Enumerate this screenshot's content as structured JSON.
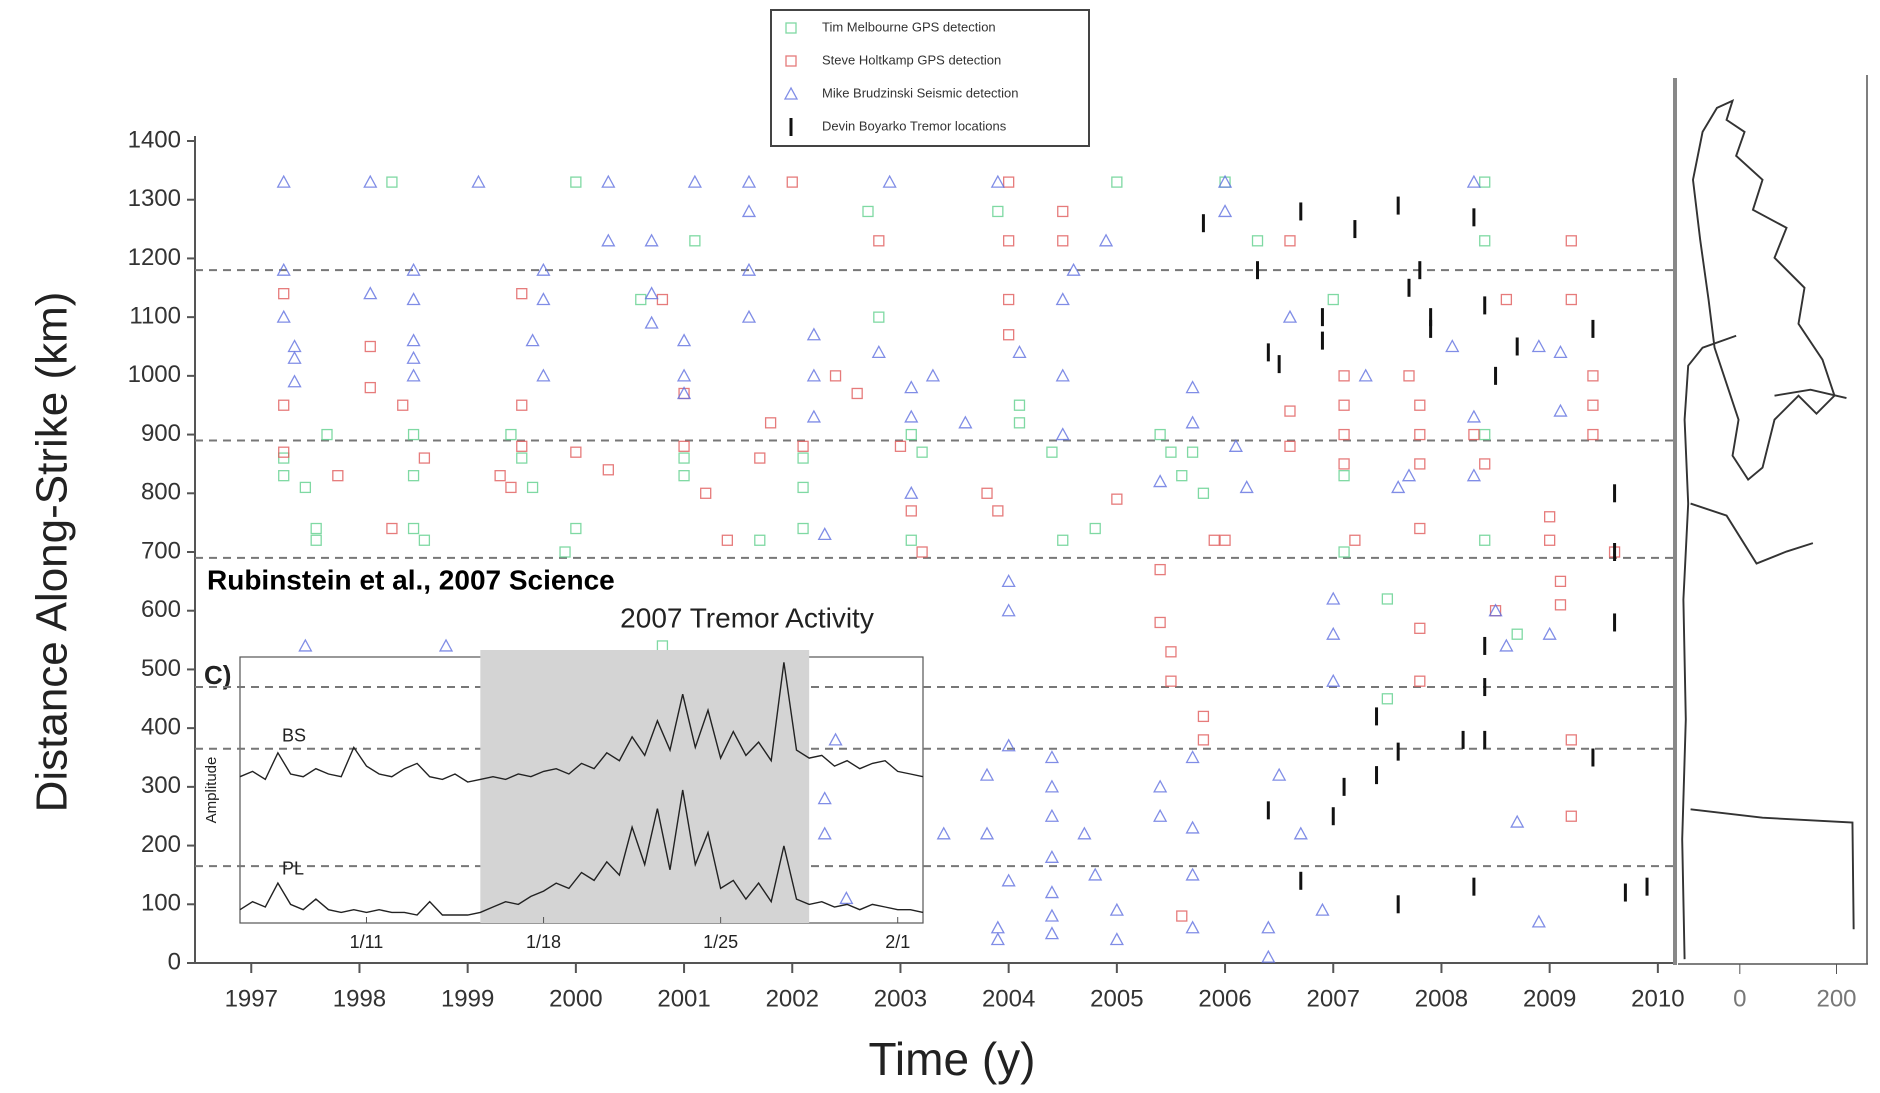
{
  "chart_data": [
    {
      "type": "scatter",
      "x_label": "Time (y)",
      "y_label": "Distance Along-Strike (km)",
      "annotation": "Rubinstein et al., 2007 Science",
      "xlim": [
        1996.48,
        2010.14
      ],
      "xticks": [
        1997,
        1998,
        1999,
        2000,
        2001,
        2002,
        2003,
        2004,
        2005,
        2006,
        2007,
        2008,
        2009,
        2010
      ],
      "ylim": [
        0,
        1400
      ],
      "yticks": [
        0,
        100,
        200,
        300,
        400,
        500,
        600,
        700,
        800,
        900,
        1000,
        1100,
        1200,
        1300,
        1400
      ],
      "hlines": [
        1180,
        890,
        690,
        470,
        365,
        165
      ],
      "legend": "top-center",
      "series": [
        {
          "name": "Tim Melbourne GPS detection",
          "color": "#5fcf8c",
          "marker": "square",
          "x": [
            1997.3,
            1997.3,
            1997.5,
            1997.6,
            1997.6,
            1997.7,
            1998.3,
            1998.5,
            1998.5,
            1998.5,
            1998.6,
            1999.4,
            1999.5,
            1999.6,
            2000.0,
            2000.0,
            1999.9,
            2000.6,
            2000.8,
            2001.0,
            2001.0,
            2001.1,
            2001.7,
            2002.1,
            2002.1,
            2002.1,
            2002.7,
            2002.8,
            2003.1,
            2003.2,
            2003.1,
            2003.9,
            2004.1,
            2004.1,
            2004.4,
            2004.5,
            2004.8,
            2005.0,
            2005.4,
            2005.5,
            2005.6,
            2005.7,
            2006.0,
            2006.3,
            2007.0,
            2007.1,
            2007.1,
            2007.5,
            2007.5,
            2008.4,
            2008.4,
            2008.4,
            2008.4,
            2008.7,
            2005.8
          ],
          "values": [
            860,
            830,
            810,
            740,
            720,
            900,
            1330,
            900,
            830,
            740,
            720,
            900,
            860,
            810,
            1330,
            740,
            700,
            1130,
            540,
            860,
            830,
            1230,
            720,
            860,
            810,
            740,
            1280,
            1100,
            900,
            870,
            720,
            1280,
            950,
            920,
            870,
            720,
            740,
            1330,
            900,
            870,
            830,
            870,
            1330,
            1230,
            1130,
            830,
            700,
            620,
            450,
            1330,
            1230,
            900,
            720,
            560,
            800
          ]
        },
        {
          "name": "Steve Holtkamp GPS detection",
          "color": "#e05a5a",
          "marker": "square",
          "x": [
            1997.3,
            1997.3,
            1997.3,
            1997.8,
            1998.1,
            1998.1,
            1998.3,
            1998.4,
            1998.6,
            1999.3,
            1999.4,
            1999.5,
            1999.5,
            1999.5,
            2000.0,
            2000.3,
            2000.8,
            2001.0,
            2001.0,
            2001.2,
            2001.4,
            2001.7,
            2001.8,
            2002.0,
            2002.1,
            2002.4,
            2002.6,
            2002.8,
            2003.0,
            2003.1,
            2003.2,
            2003.8,
            2003.9,
            2004.0,
            2004.0,
            2004.0,
            2004.0,
            2004.5,
            2004.5,
            2005.0,
            2005.4,
            2005.4,
            2005.5,
            2005.5,
            2005.6,
            2005.8,
            2005.8,
            2005.9,
            2006.0,
            2006.6,
            2006.6,
            2006.6,
            2007.1,
            2007.1,
            2007.1,
            2007.1,
            2007.2,
            2007.7,
            2007.8,
            2007.8,
            2007.8,
            2007.8,
            2007.8,
            2007.8,
            2008.3,
            2008.4,
            2008.5,
            2008.6,
            2009.0,
            2009.0,
            2009.1,
            2009.1,
            2009.2,
            2009.2,
            2009.2,
            2009.2,
            2009.4,
            2009.4,
            2009.4,
            2009.6
          ],
          "values": [
            1140,
            870,
            950,
            830,
            1050,
            980,
            740,
            950,
            860,
            830,
            810,
            1140,
            950,
            880,
            870,
            840,
            1130,
            970,
            880,
            800,
            720,
            860,
            920,
            1330,
            880,
            1000,
            970,
            1230,
            880,
            770,
            700,
            800,
            770,
            1330,
            1230,
            1130,
            1070,
            1280,
            1230,
            790,
            670,
            580,
            530,
            480,
            80,
            420,
            380,
            720,
            720,
            1230,
            940,
            880,
            1000,
            950,
            900,
            850,
            720,
            1000,
            950,
            900,
            850,
            740,
            570,
            480,
            900,
            850,
            600,
            1130,
            760,
            720,
            650,
            610,
            1230,
            1130,
            380,
            250,
            1000,
            950,
            900,
            700
          ]
        },
        {
          "name": "Mike Brudzinski Seismic detection",
          "color": "#6070e0",
          "marker": "triangle",
          "x": [
            1997.3,
            1997.3,
            1997.3,
            1997.4,
            1997.4,
            1997.4,
            1997.5,
            1998.1,
            1998.1,
            1998.5,
            1998.5,
            1998.5,
            1998.5,
            1998.5,
            1998.8,
            1999.1,
            1999.6,
            1999.7,
            1999.7,
            1999.7,
            2000.3,
            2000.3,
            2000.7,
            2000.7,
            2000.7,
            2001.0,
            2001.0,
            2001.0,
            2001.1,
            2001.6,
            2001.6,
            2001.6,
            2001.6,
            2002.2,
            2002.2,
            2002.2,
            2002.3,
            2002.4,
            2002.3,
            2002.3,
            2002.5,
            2002.9,
            2002.8,
            2003.1,
            2003.1,
            2003.1,
            2003.3,
            2003.4,
            2003.6,
            2003.8,
            2003.8,
            2003.9,
            2003.9,
            2003.9,
            2004.0,
            2004.0,
            2004.0,
            2004.0,
            2004.1,
            2004.5,
            2004.5,
            2004.5,
            2004.4,
            2004.4,
            2004.4,
            2004.4,
            2004.4,
            2004.4,
            2004.4,
            2004.6,
            2004.7,
            2004.8,
            2004.9,
            2005.0,
            2005.0,
            2005.4,
            2005.4,
            2005.4,
            2005.7,
            2005.7,
            2005.7,
            2005.7,
            2005.7,
            2005.7,
            2006.0,
            2006.0,
            2006.1,
            2006.2,
            2006.5,
            2006.6,
            2006.4,
            2006.4,
            2006.7,
            2006.9,
            2007.0,
            2007.0,
            2007.0,
            2007.3,
            2007.6,
            2007.7,
            2008.1,
            2008.3,
            2008.3,
            2008.3,
            2008.5,
            2008.6,
            2008.7,
            2008.9,
            2008.9,
            2009.0,
            2009.1,
            2009.1
          ],
          "values": [
            1330,
            1180,
            1100,
            1050,
            990,
            1030,
            540,
            1330,
            1140,
            1180,
            1130,
            1060,
            1000,
            1030,
            540,
            1330,
            1060,
            1180,
            1130,
            1000,
            1330,
            1230,
            1230,
            1140,
            1090,
            1060,
            1000,
            970,
            1330,
            1330,
            1280,
            1180,
            1100,
            1070,
            1000,
            930,
            730,
            380,
            280,
            220,
            110,
            1330,
            1040,
            980,
            930,
            800,
            1000,
            220,
            920,
            320,
            220,
            60,
            40,
            1330,
            650,
            600,
            370,
            140,
            1040,
            1130,
            1000,
            900,
            350,
            300,
            250,
            180,
            120,
            80,
            50,
            1180,
            220,
            150,
            1230,
            90,
            40,
            820,
            300,
            250,
            350,
            230,
            150,
            60,
            920,
            980,
            1280,
            1330,
            880,
            810,
            320,
            1100,
            60,
            10,
            220,
            90,
            620,
            560,
            480,
            1000,
            810,
            830,
            1050,
            930,
            830,
            1330,
            600,
            540,
            240,
            1050,
            70,
            560,
            1040,
            940
          ]
        },
        {
          "name": "Devin Boyarko Tremor locations",
          "color": "#111111",
          "marker": "tick",
          "x": [
            2005.8,
            2006.3,
            2006.4,
            2006.5,
            2006.7,
            2006.9,
            2007.0,
            2007.1,
            2007.2,
            2007.4,
            2007.6,
            2007.6,
            2007.6,
            2007.7,
            2007.8,
            2007.9,
            2007.9,
            2008.3,
            2008.2,
            2008.3,
            2008.4,
            2008.4,
            2008.4,
            2008.4,
            2008.5,
            2008.7,
            2009.4,
            2009.4,
            2009.6,
            2009.6,
            2009.6,
            2009.7,
            2009.9,
            2006.7,
            2006.4,
            2006.9,
            2007.4
          ],
          "values": [
            1260,
            1180,
            1040,
            1020,
            1280,
            1100,
            250,
            300,
            1250,
            320,
            1290,
            360,
            100,
            1150,
            1180,
            1100,
            1080,
            1270,
            380,
            130,
            1120,
            540,
            470,
            380,
            1000,
            1050,
            1080,
            350,
            800,
            700,
            580,
            120,
            130,
            140,
            260,
            1060,
            420
          ]
        }
      ]
    },
    {
      "type": "line",
      "title": "2007 Tremor Activity",
      "panel_label": "C)",
      "y_label": "Amplitude",
      "xlim": [
        6,
        33
      ],
      "xticks": [
        {
          "value": 11,
          "label": "1/11"
        },
        {
          "value": 18,
          "label": "1/18"
        },
        {
          "value": 25,
          "label": "1/25"
        },
        {
          "value": 32,
          "label": "2/1"
        }
      ],
      "ylim": [
        0,
        10
      ],
      "shade": [
        15.5,
        28.5
      ],
      "x": [
        6,
        6.5,
        7,
        7.5,
        8,
        8.5,
        9,
        9.5,
        10,
        10.5,
        11,
        11.5,
        12,
        12.5,
        13,
        13.5,
        14,
        14.5,
        15,
        15.5,
        16,
        16.5,
        17,
        17.5,
        18,
        18.5,
        19,
        19.5,
        20,
        20.5,
        21,
        21.5,
        22,
        22.5,
        23,
        23.5,
        24,
        24.5,
        25,
        25.5,
        26,
        26.5,
        27,
        27.5,
        28,
        28.5,
        29,
        29.5,
        30,
        30.5,
        31,
        31.5,
        32,
        32.5,
        33
      ],
      "series": [
        {
          "name": "BS",
          "color": "#222222",
          "values": [
            5.5,
            5.7,
            5.4,
            6.4,
            5.6,
            5.5,
            5.8,
            5.6,
            5.5,
            6.6,
            5.9,
            5.6,
            5.5,
            5.8,
            6.0,
            5.5,
            5.4,
            5.6,
            5.3,
            5.4,
            5.5,
            5.4,
            5.6,
            5.5,
            5.7,
            5.8,
            5.6,
            6.0,
            5.8,
            6.4,
            6.1,
            7.0,
            6.3,
            7.6,
            6.5,
            8.6,
            6.6,
            8.0,
            6.2,
            7.2,
            6.3,
            6.8,
            6.1,
            9.8,
            6.5,
            6.2,
            6.3,
            5.9,
            6.1,
            5.8,
            6.0,
            6.1,
            5.7,
            5.6,
            5.5
          ]
        },
        {
          "name": "PL",
          "color": "#222222",
          "values": [
            0.5,
            0.8,
            0.6,
            1.5,
            0.7,
            0.5,
            0.9,
            0.5,
            0.4,
            0.5,
            0.4,
            0.5,
            0.4,
            0.4,
            0.3,
            0.8,
            0.3,
            0.3,
            0.3,
            0.4,
            0.6,
            0.8,
            0.7,
            1.0,
            1.2,
            1.5,
            1.3,
            1.9,
            1.6,
            2.3,
            1.8,
            3.6,
            2.2,
            4.3,
            2.0,
            5.0,
            2.2,
            3.4,
            1.3,
            1.6,
            0.9,
            1.5,
            0.8,
            2.9,
            0.9,
            0.7,
            0.8,
            0.6,
            0.7,
            0.5,
            0.7,
            0.6,
            0.5,
            0.5,
            0.4
          ]
        }
      ]
    },
    {
      "type": "map",
      "xlim": [
        -132,
        290
      ],
      "xticks": [
        0,
        200
      ]
    }
  ]
}
